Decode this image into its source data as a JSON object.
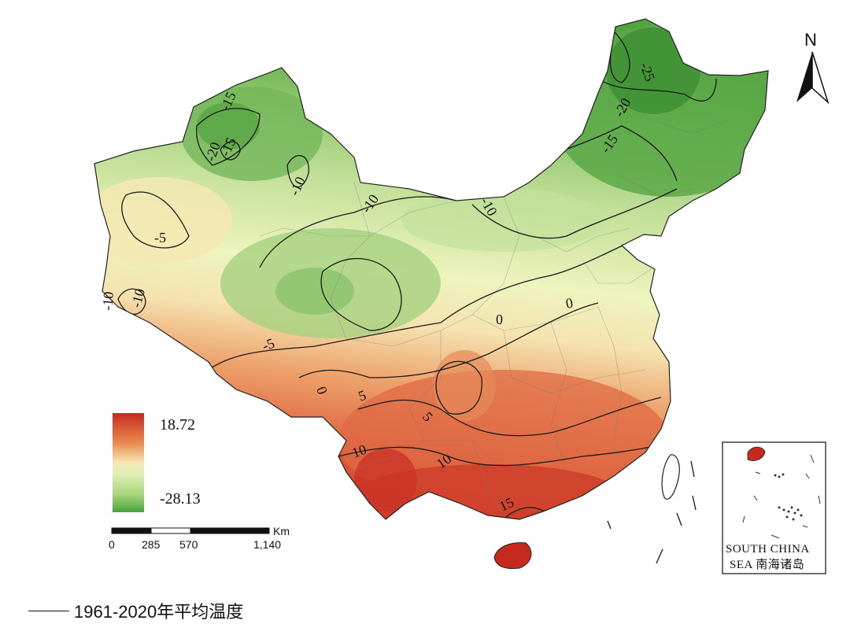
{
  "legend": {
    "max_label": "18.72",
    "min_label": "-28.13",
    "colors": [
      "#c62a1f",
      "#e88a4e",
      "#f6e7b6",
      "#dff0b4",
      "#a9d47c",
      "#49a33c"
    ]
  },
  "scale_bar": {
    "unit": "Km",
    "ticks": [
      "0",
      "285",
      "570",
      "1,140"
    ]
  },
  "north_arrow": {
    "label": "N"
  },
  "inset": {
    "line1": "SOUTH CHINA",
    "line2": "SEA 南海诸岛"
  },
  "contour_labels": [
    "-25",
    "-20",
    "-15",
    "-15",
    "-20",
    "-15",
    "-10",
    "-10",
    "-10",
    "-5",
    "-10",
    "-10",
    "-5",
    "0",
    "0",
    "0",
    "5",
    "5",
    "10",
    "10",
    "15"
  ],
  "caption": "1961-2020年平均温度",
  "colors": {
    "hot": "#c62a1f",
    "warm": "#ea9660",
    "neutral": "#f5eab8",
    "cool": "#c5e29a",
    "cold": "#4a9c3a"
  }
}
